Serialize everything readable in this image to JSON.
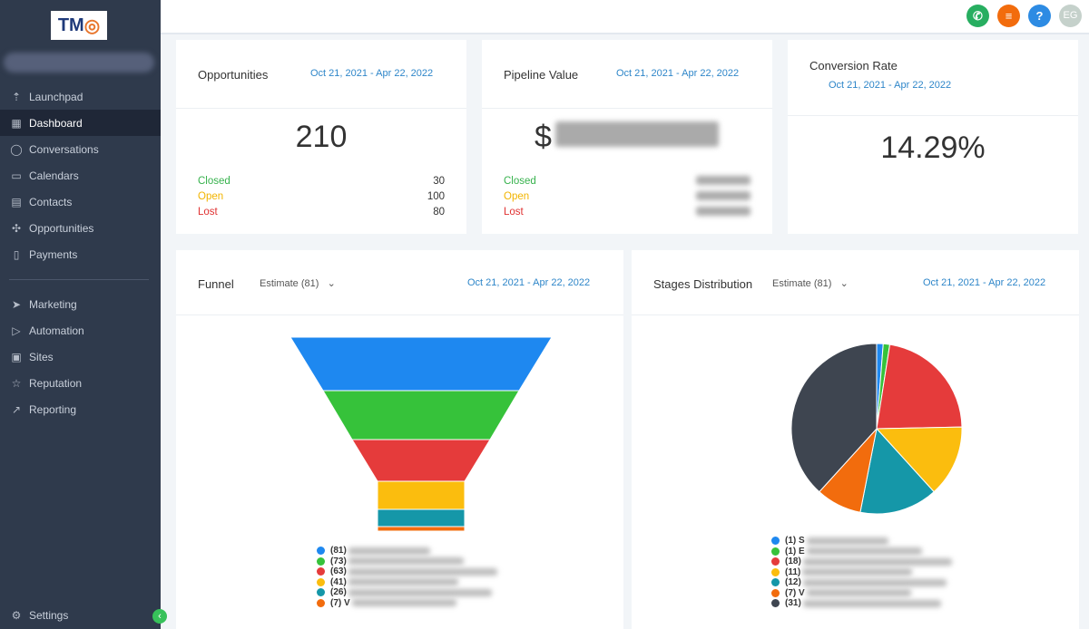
{
  "logo": "TMO",
  "sidebar": {
    "items": [
      {
        "label": "Launchpad",
        "icon": "rocket-icon"
      },
      {
        "label": "Dashboard",
        "icon": "grid-icon",
        "active": true
      },
      {
        "label": "Conversations",
        "icon": "chat-icon"
      },
      {
        "label": "Calendars",
        "icon": "calendar-icon"
      },
      {
        "label": "Contacts",
        "icon": "contacts-icon"
      },
      {
        "label": "Opportunities",
        "icon": "opportunities-icon"
      },
      {
        "label": "Payments",
        "icon": "payments-icon"
      }
    ],
    "items2": [
      {
        "label": "Marketing",
        "icon": "send-icon"
      },
      {
        "label": "Automation",
        "icon": "play-icon"
      },
      {
        "label": "Sites",
        "icon": "sites-icon"
      },
      {
        "label": "Reputation",
        "icon": "star-icon"
      },
      {
        "label": "Reporting",
        "icon": "trend-icon"
      }
    ],
    "settings": "Settings"
  },
  "topbar": {
    "avatar": "EG",
    "help": "?"
  },
  "opportunities": {
    "title": "Opportunities",
    "date": "Oct 21, 2021 - Apr 22, 2022",
    "total": "210",
    "rows": [
      {
        "label": "Closed",
        "value": "30",
        "color": "#37b24d"
      },
      {
        "label": "Open",
        "value": "100",
        "color": "#f2b400"
      },
      {
        "label": "Lost",
        "value": "80",
        "color": "#e03131"
      }
    ]
  },
  "pipeline": {
    "title": "Pipeline Value",
    "date": "Oct 21, 2021 - Apr 22, 2022",
    "currency": "$",
    "rows": [
      {
        "label": "Closed"
      },
      {
        "label": "Open"
      },
      {
        "label": "Lost"
      }
    ]
  },
  "conversion": {
    "title": "Conversion Rate",
    "date": "Oct 21, 2021 - Apr 22, 2022",
    "value": "14.29%"
  },
  "funnel": {
    "title": "Funnel",
    "select": "Estimate (81)",
    "date": "Oct 21, 2021 - Apr 22, 2022"
  },
  "stages": {
    "title": "Stages Distribution",
    "select": "Estimate (81)",
    "date": "Oct 21, 2021 - Apr 22, 2022"
  },
  "chart_data": [
    {
      "type": "funnel",
      "title": "Funnel",
      "values": [
        81,
        73,
        63,
        41,
        26,
        7
      ],
      "legend": [
        "(81)",
        "(73)",
        "(63)",
        "(41)",
        "(26)",
        "(7) V"
      ],
      "colors": [
        "#1e88f0",
        "#36c23a",
        "#e53b3b",
        "#fbbd0e",
        "#1597a8",
        "#f26c0d"
      ]
    },
    {
      "type": "pie",
      "title": "Stages Distribution",
      "values": [
        1,
        1,
        18,
        11,
        12,
        7,
        31
      ],
      "legend": [
        "(1) S",
        "(1) E",
        "(18)",
        "(11)",
        "(12)",
        "(7) V",
        "(31)"
      ],
      "colors": [
        "#1e88f0",
        "#36c23a",
        "#e53b3b",
        "#fbbd0e",
        "#1597a8",
        "#f26c0d",
        "#3e4550"
      ]
    }
  ]
}
